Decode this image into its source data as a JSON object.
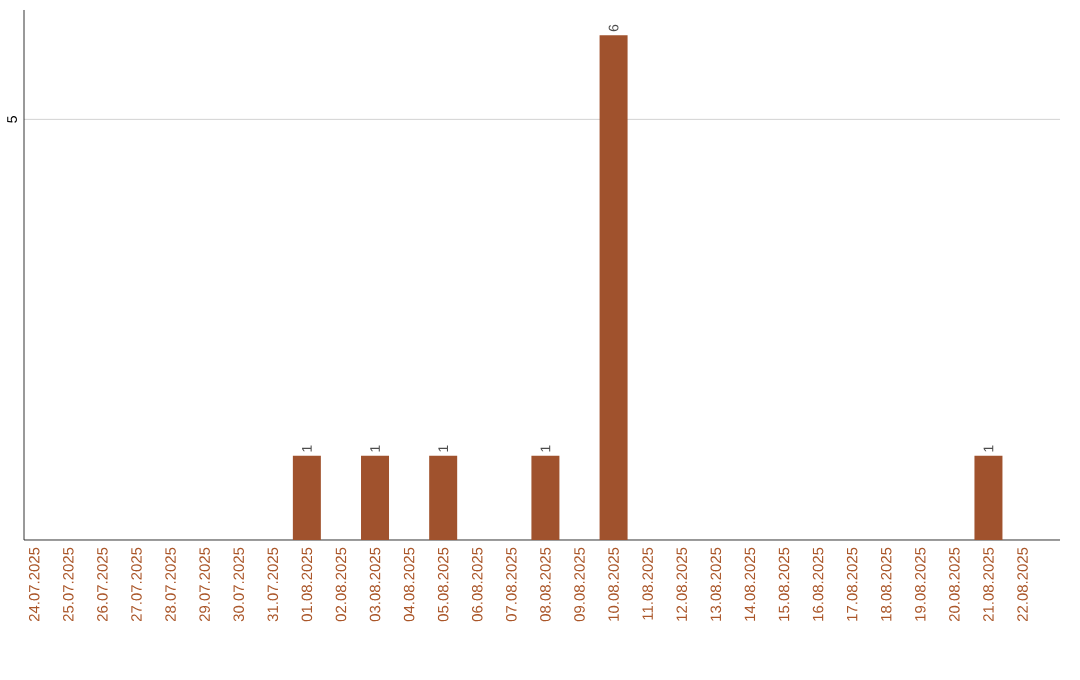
{
  "chart_data": {
    "type": "bar",
    "categories": [
      "24.07.2025",
      "25.07.2025",
      "26.07.2025",
      "27.07.2025",
      "28.07.2025",
      "29.07.2025",
      "30.07.2025",
      "31.07.2025",
      "01.08.2025",
      "02.08.2025",
      "03.08.2025",
      "04.08.2025",
      "05.08.2025",
      "06.08.2025",
      "07.08.2025",
      "08.08.2025",
      "09.08.2025",
      "10.08.2025",
      "11.08.2025",
      "12.08.2025",
      "13.08.2025",
      "14.08.2025",
      "15.08.2025",
      "16.08.2025",
      "17.08.2025",
      "18.08.2025",
      "19.08.2025",
      "20.08.2025",
      "21.08.2025",
      "22.08.2025"
    ],
    "values": [
      0,
      0,
      0,
      0,
      0,
      0,
      0,
      0,
      1,
      0,
      1,
      0,
      1,
      0,
      0,
      1,
      0,
      6,
      0,
      0,
      0,
      0,
      0,
      0,
      0,
      0,
      0,
      0,
      1,
      0
    ],
    "value_labels": [
      null,
      null,
      null,
      null,
      null,
      null,
      null,
      null,
      "1",
      null,
      "1",
      null,
      "1",
      null,
      null,
      "1",
      null,
      "6",
      null,
      null,
      null,
      null,
      null,
      null,
      null,
      null,
      null,
      null,
      "1",
      null
    ],
    "color": "#a0522d",
    "ylim": [
      0,
      6.3
    ],
    "yticks": [
      5
    ],
    "grid": "y"
  }
}
